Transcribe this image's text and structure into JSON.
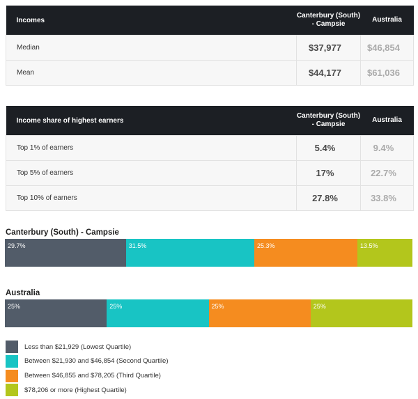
{
  "incomes_table": {
    "headers": [
      "Incomes",
      "Canterbury (South) - Campsie",
      "Australia"
    ],
    "rows": [
      {
        "label": "Median",
        "local": "$37,977",
        "national": "$46,854"
      },
      {
        "label": "Mean",
        "local": "$44,177",
        "national": "$61,036"
      }
    ]
  },
  "share_table": {
    "headers": [
      "Income share of highest earners",
      "Canterbury (South) - Campsie",
      "Australia"
    ],
    "rows": [
      {
        "label": "Top 1% of earners",
        "local": "5.4%",
        "national": "9.4%"
      },
      {
        "label": "Top 5% of earners",
        "local": "17%",
        "national": "22.7%"
      },
      {
        "label": "Top 10% of earners",
        "local": "27.8%",
        "national": "33.8%"
      }
    ]
  },
  "colors": {
    "lowest": "#525c69",
    "second": "#18c4c4",
    "third": "#f58c1f",
    "highest": "#b3c61c"
  },
  "chart_data": [
    {
      "type": "bar",
      "title": "Canterbury (South) - Campsie",
      "stacked": true,
      "series": [
        {
          "name": "Less than $21,929 (Lowest Quartile)",
          "value": 29.7,
          "label": "29.7%"
        },
        {
          "name": "Between $21,930 and $46,854 (Second Quartile)",
          "value": 31.5,
          "label": "31.5%"
        },
        {
          "name": "Between $46,855 and $78,205 (Third Quartile)",
          "value": 25.3,
          "label": "25.3%"
        },
        {
          "name": "$78,206 or more (Highest Quartile)",
          "value": 13.5,
          "label": "13.5%"
        }
      ]
    },
    {
      "type": "bar",
      "title": "Australia",
      "stacked": true,
      "series": [
        {
          "name": "Less than $21,929 (Lowest Quartile)",
          "value": 25,
          "label": "25%"
        },
        {
          "name": "Between $21,930 and $46,854 (Second Quartile)",
          "value": 25,
          "label": "25%"
        },
        {
          "name": "Between $46,855 and $78,205 (Third Quartile)",
          "value": 25,
          "label": "25%"
        },
        {
          "name": "$78,206 or more (Highest Quartile)",
          "value": 25,
          "label": "25%"
        }
      ]
    }
  ],
  "legend": [
    {
      "label": "Less than $21,929 (Lowest Quartile)",
      "color": "#525c69"
    },
    {
      "label": "Between $21,930 and $46,854 (Second Quartile)",
      "color": "#18c4c4"
    },
    {
      "label": "Between $46,855 and $78,205 (Third Quartile)",
      "color": "#f58c1f"
    },
    {
      "label": "$78,206 or more (Highest Quartile)",
      "color": "#b3c61c"
    }
  ]
}
